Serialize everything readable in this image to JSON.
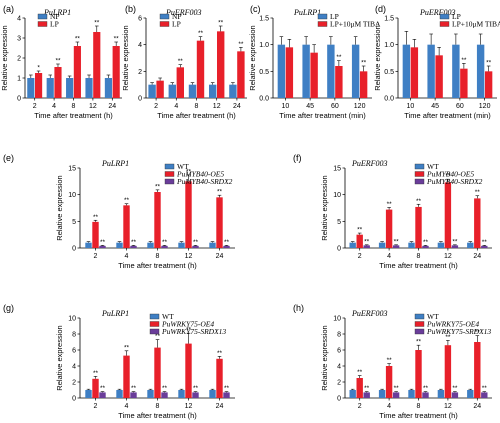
{
  "colors": {
    "blue": "#3f7fc4",
    "red": "#e8202a",
    "purple": "#6a3d9a",
    "axis": "#000000"
  },
  "chart_data": [
    {
      "panel": "(a)",
      "type": "bar",
      "gene": "PuLRP1",
      "xlabel": "Time after treatment (h)",
      "ylabel": "Relative expression",
      "categories": [
        "2",
        "4",
        "8",
        "12",
        "24"
      ],
      "ylim": [
        0,
        4
      ],
      "yticks": [
        0,
        1,
        2,
        3,
        4
      ],
      "legend": "top-left",
      "series": [
        {
          "name": "NP",
          "color": "blue",
          "values": [
            1.0,
            1.0,
            1.0,
            1.0,
            1.0
          ],
          "errors": [
            0.15,
            0.15,
            0.1,
            0.15,
            0.15
          ],
          "marks": [
            "",
            "",
            "",
            "",
            ""
          ]
        },
        {
          "name": "LP",
          "color": "red",
          "values": [
            1.25,
            1.55,
            2.6,
            3.3,
            2.6
          ],
          "errors": [
            0.1,
            0.15,
            0.2,
            0.3,
            0.2
          ],
          "marks": [
            "*",
            "**",
            "**",
            "**",
            "**"
          ]
        }
      ]
    },
    {
      "panel": "(b)",
      "type": "bar",
      "gene": "PuERF003",
      "xlabel": "Time after treatment (h)",
      "ylabel": "Relative expression",
      "categories": [
        "2",
        "4",
        "8",
        "12",
        "24"
      ],
      "ylim": [
        0,
        6
      ],
      "yticks": [
        0,
        2,
        4,
        6
      ],
      "legend": "top-left",
      "series": [
        {
          "name": "NP",
          "color": "blue",
          "values": [
            1.0,
            1.0,
            1.0,
            1.0,
            1.0
          ],
          "errors": [
            0.15,
            0.15,
            0.15,
            0.15,
            0.15
          ],
          "marks": [
            "",
            "",
            "",
            "",
            ""
          ]
        },
        {
          "name": "LP",
          "color": "red",
          "values": [
            1.3,
            2.3,
            4.3,
            5.0,
            3.5
          ],
          "errors": [
            0.2,
            0.2,
            0.3,
            0.4,
            0.3
          ],
          "marks": [
            "",
            "**",
            "**",
            "**",
            "**"
          ]
        }
      ]
    },
    {
      "panel": "(c)",
      "type": "bar",
      "gene": "PuLRP1",
      "xlabel": "Time after treatment (min)",
      "ylabel": "Relative expression",
      "categories": [
        "10",
        "45",
        "60",
        "120"
      ],
      "ylim": [
        0,
        1.5
      ],
      "yticks": [
        0,
        0.5,
        1.0,
        1.5
      ],
      "legend": "top-right",
      "series": [
        {
          "name": "LP",
          "color": "blue",
          "values": [
            1.0,
            1.0,
            1.0,
            1.0
          ],
          "errors": [
            0.15,
            0.15,
            0.15,
            0.15
          ],
          "marks": [
            "",
            "",
            "",
            ""
          ]
        },
        {
          "name": "LP+10μM TIBA",
          "color": "red",
          "values": [
            0.95,
            0.85,
            0.6,
            0.5
          ],
          "errors": [
            0.15,
            0.15,
            0.1,
            0.1
          ],
          "marks": [
            "",
            "",
            "**",
            "**"
          ]
        }
      ]
    },
    {
      "panel": "(d)",
      "type": "bar",
      "gene": "PuERF003",
      "xlabel": "Time after treatment (min)",
      "ylabel": "Relative expression",
      "categories": [
        "10",
        "45",
        "60",
        "120"
      ],
      "ylim": [
        0,
        1.5
      ],
      "yticks": [
        0,
        0.5,
        1.0,
        1.5
      ],
      "legend": "top-right",
      "series": [
        {
          "name": "LP",
          "color": "blue",
          "values": [
            1.0,
            1.0,
            1.0,
            1.0
          ],
          "errors": [
            0.25,
            0.2,
            0.2,
            0.2
          ],
          "marks": [
            "",
            "",
            "",
            ""
          ]
        },
        {
          "name": "LP+10μM TIBA",
          "color": "red",
          "values": [
            0.95,
            0.8,
            0.55,
            0.5
          ],
          "errors": [
            0.15,
            0.15,
            0.1,
            0.1
          ],
          "marks": [
            "",
            "",
            "**",
            "**"
          ]
        }
      ]
    },
    {
      "panel": "(e)",
      "type": "bar",
      "gene": "PuLRP1",
      "xlabel": "Time after treatment (h)",
      "ylabel": "Relative expression",
      "categories": [
        "2",
        "4",
        "8",
        "12",
        "24"
      ],
      "ylim": [
        0,
        15
      ],
      "yticks": [
        0,
        5,
        10,
        15
      ],
      "legend": "top-right",
      "series": [
        {
          "name": "WT",
          "color": "blue",
          "values": [
            1.0,
            1.0,
            1.0,
            1.0,
            1.0
          ],
          "errors": [
            0.2,
            0.2,
            0.2,
            0.2,
            0.2
          ],
          "marks": [
            "",
            "",
            "",
            "",
            ""
          ]
        },
        {
          "name": "PuMYB40-OE5",
          "color": "red",
          "values": [
            4.9,
            8.0,
            10.5,
            12.5,
            9.5
          ],
          "errors": [
            0.3,
            0.3,
            0.4,
            1.2,
            0.4
          ],
          "marks": [
            "**",
            "**",
            "**",
            "**",
            "**"
          ]
        },
        {
          "name": "PuMYB40-SRDX2",
          "color": "purple",
          "values": [
            0.4,
            0.4,
            0.4,
            0.4,
            0.4
          ],
          "errors": [
            0.1,
            0.1,
            0.1,
            0.1,
            0.1
          ],
          "marks": [
            "**",
            "**",
            "**",
            "**",
            "**"
          ]
        }
      ]
    },
    {
      "panel": "(f)",
      "type": "bar",
      "gene": "PuERF003",
      "xlabel": "Time after treatment (h)",
      "ylabel": "Relative expression",
      "categories": [
        "2",
        "4",
        "8",
        "12",
        "24"
      ],
      "ylim": [
        0,
        15
      ],
      "yticks": [
        0,
        5,
        10,
        15
      ],
      "legend": "top-right",
      "series": [
        {
          "name": "WT",
          "color": "blue",
          "values": [
            1.0,
            1.0,
            1.0,
            1.0,
            1.0
          ],
          "errors": [
            0.2,
            0.2,
            0.2,
            0.2,
            0.2
          ],
          "marks": [
            "",
            "",
            "",
            "",
            ""
          ]
        },
        {
          "name": "PuMYB40-OE5",
          "color": "red",
          "values": [
            2.5,
            7.2,
            7.7,
            12.3,
            9.3
          ],
          "errors": [
            0.3,
            0.4,
            0.5,
            0.6,
            0.5
          ],
          "marks": [
            "**",
            "**",
            "**",
            "**",
            "**"
          ]
        },
        {
          "name": "PuMYB40-SRDX2",
          "color": "purple",
          "values": [
            0.5,
            0.5,
            0.4,
            0.5,
            0.4
          ],
          "errors": [
            0.1,
            0.1,
            0.1,
            0.1,
            0.1
          ],
          "marks": [
            "**",
            "**",
            "**",
            "**",
            "**"
          ]
        }
      ]
    },
    {
      "panel": "(g)",
      "type": "bar",
      "gene": "PuLRP1",
      "xlabel": "Time after treatment (h)",
      "ylabel": "Relative expression",
      "categories": [
        "2",
        "4",
        "8",
        "12",
        "24"
      ],
      "ylim": [
        0,
        10
      ],
      "yticks": [
        0,
        2,
        4,
        6,
        8,
        10
      ],
      "legend": "top-right",
      "series": [
        {
          "name": "WT",
          "color": "blue",
          "values": [
            1.0,
            1.0,
            1.0,
            1.0,
            1.0
          ],
          "errors": [
            0.1,
            0.1,
            0.1,
            0.1,
            0.1
          ],
          "marks": [
            "",
            "",
            "",
            "",
            ""
          ]
        },
        {
          "name": "PuWRKY75-OE4",
          "color": "red",
          "values": [
            2.4,
            5.3,
            6.3,
            6.8,
            4.9
          ],
          "errors": [
            0.3,
            0.6,
            1.0,
            1.3,
            0.3
          ],
          "marks": [
            "**",
            "**",
            "**",
            "**",
            "**"
          ]
        },
        {
          "name": "PuWRKY75-SRDX13",
          "color": "purple",
          "values": [
            0.7,
            0.7,
            0.7,
            0.7,
            0.7
          ],
          "errors": [
            0.1,
            0.1,
            0.1,
            0.1,
            0.1
          ],
          "marks": [
            "**",
            "**",
            "**",
            "**",
            "**"
          ]
        }
      ]
    },
    {
      "panel": "(h)",
      "type": "bar",
      "gene": "PuERF003",
      "xlabel": "Time after treatment (h)",
      "ylabel": "Relative expression",
      "categories": [
        "2",
        "4",
        "8",
        "12",
        "24"
      ],
      "ylim": [
        0,
        10
      ],
      "yticks": [
        0,
        2,
        4,
        6,
        8,
        10
      ],
      "legend": "top-right",
      "series": [
        {
          "name": "WT",
          "color": "blue",
          "values": [
            1.0,
            1.0,
            1.0,
            1.0,
            1.0
          ],
          "errors": [
            0.1,
            0.1,
            0.1,
            0.1,
            0.1
          ],
          "marks": [
            "",
            "",
            "",
            "",
            ""
          ]
        },
        {
          "name": "PuWRKY75-OE4",
          "color": "red",
          "values": [
            2.5,
            4.0,
            6.0,
            6.6,
            7.0
          ],
          "errors": [
            0.3,
            0.3,
            0.6,
            0.6,
            0.8
          ],
          "marks": [
            "**",
            "**",
            "**",
            "**",
            "**"
          ]
        },
        {
          "name": "PuWRKY75-SRDX13",
          "color": "purple",
          "values": [
            0.7,
            0.7,
            0.7,
            0.7,
            0.7
          ],
          "errors": [
            0.1,
            0.1,
            0.1,
            0.1,
            0.1
          ],
          "marks": [
            "**",
            "**",
            "**",
            "**",
            "**"
          ]
        }
      ]
    }
  ]
}
